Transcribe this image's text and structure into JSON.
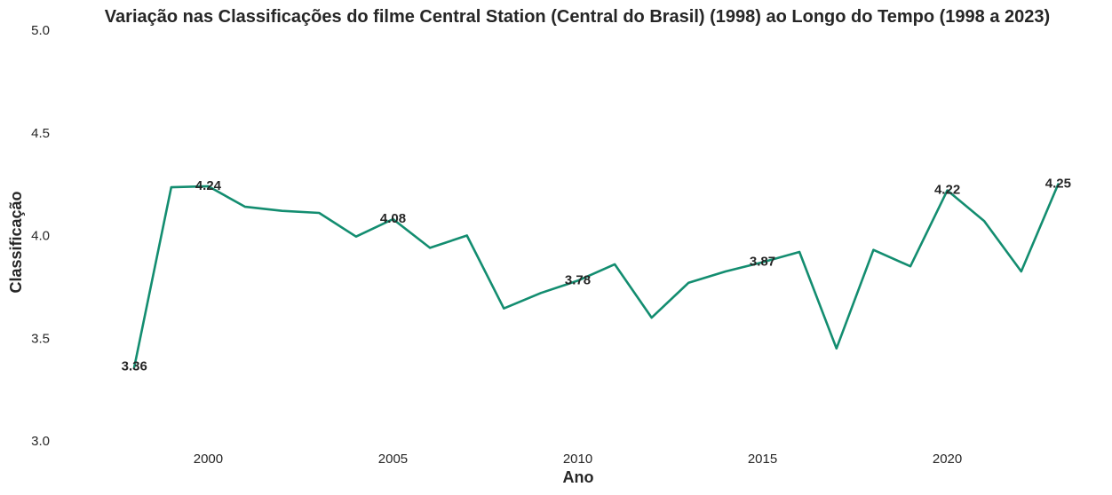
{
  "chart_data": {
    "type": "line",
    "title": "Variação nas Classificações do filme Central Station (Central do Brasil) (1998) ao Longo do Tempo (1998 a 2023)",
    "xlabel": "Ano",
    "ylabel": "Classificação",
    "xlim": [
      1996.0,
      2024.0
    ],
    "ylim": [
      3.0,
      5.0
    ],
    "x_ticks": [
      2000,
      2005,
      2010,
      2015,
      2020
    ],
    "y_ticks": [
      3.0,
      3.5,
      4.0,
      4.5,
      5.0
    ],
    "x_tick_labels": [
      "2000",
      "2005",
      "2010",
      "2015",
      "2020"
    ],
    "y_tick_labels": [
      "3.0",
      "3.5",
      "4.0",
      "4.5",
      "5.0"
    ],
    "grid": false,
    "series": [
      {
        "color": "#138d70",
        "x": [
          1998,
          1999,
          2000,
          2001,
          2002,
          2003,
          2004,
          2005,
          2006,
          2007,
          2008,
          2009,
          2010,
          2011,
          2012,
          2013,
          2014,
          2015,
          2016,
          2017,
          2018,
          2019,
          2020,
          2021,
          2022,
          2023
        ],
        "values": [
          3.36,
          4.235,
          4.24,
          4.14,
          4.12,
          4.11,
          3.995,
          4.08,
          3.94,
          4.0,
          3.645,
          3.72,
          3.78,
          3.86,
          3.6,
          3.77,
          3.825,
          3.87,
          3.92,
          3.45,
          3.93,
          3.85,
          4.22,
          4.07,
          3.825,
          4.25
        ]
      }
    ],
    "annotations": [
      {
        "x": 1998,
        "y": 3.36,
        "text": "3.36"
      },
      {
        "x": 2000,
        "y": 4.24,
        "text": "4.24"
      },
      {
        "x": 2005,
        "y": 4.08,
        "text": "4.08"
      },
      {
        "x": 2010,
        "y": 3.78,
        "text": "3.78"
      },
      {
        "x": 2015,
        "y": 3.87,
        "text": "3.87"
      },
      {
        "x": 2020,
        "y": 4.22,
        "text": "4.22"
      },
      {
        "x": 2023,
        "y": 4.25,
        "text": "4.25"
      }
    ]
  }
}
